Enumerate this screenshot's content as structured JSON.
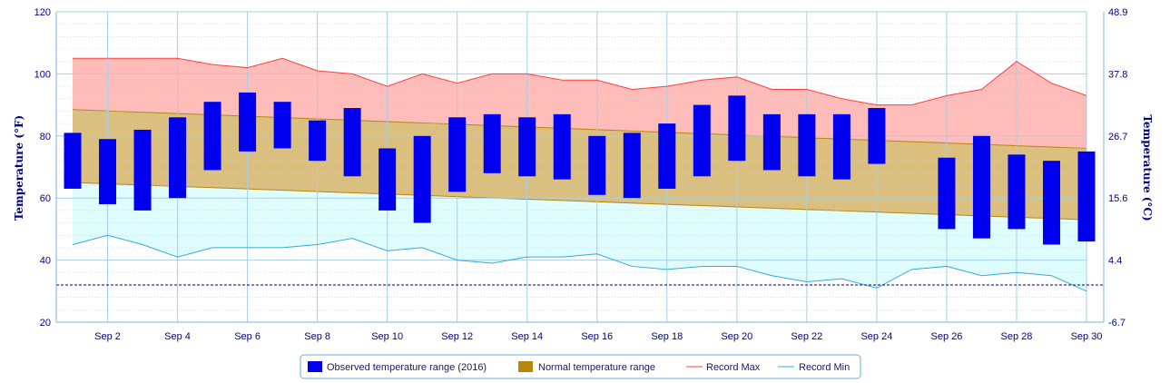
{
  "chart_data": {
    "type": "bar",
    "x_tick_labels": [
      "Sep 2",
      "Sep 4",
      "Sep 6",
      "Sep 8",
      "Sep 10",
      "Sep 12",
      "Sep 14",
      "Sep 16",
      "Sep 18",
      "Sep 20",
      "Sep 22",
      "Sep 24",
      "Sep 26",
      "Sep 28",
      "Sep 30"
    ],
    "days": [
      1,
      2,
      3,
      4,
      5,
      6,
      7,
      8,
      9,
      10,
      11,
      12,
      13,
      14,
      15,
      16,
      17,
      18,
      19,
      20,
      21,
      22,
      23,
      24,
      25,
      26,
      27,
      28,
      29,
      30
    ],
    "ylabel_left": "Temperature (°F)",
    "ylabel_right": "Temperature (°C)",
    "ylim_f": [
      20,
      120
    ],
    "yticks_f": [
      20,
      40,
      60,
      80,
      100,
      120
    ],
    "yticks_c": [
      "-6.7",
      "4.4",
      "15.6",
      "26.7",
      "37.8",
      "48.9"
    ],
    "freezing_line_f": 32,
    "series": [
      {
        "name": "Observed temperature range (2016)",
        "color": "#0000ee",
        "low": [
          63,
          58,
          56,
          60,
          69,
          75,
          76,
          72,
          67,
          56,
          52,
          62,
          68,
          67,
          66,
          61,
          60,
          63,
          67,
          72,
          69,
          67,
          66,
          71,
          null,
          50,
          47,
          50,
          45,
          46
        ],
        "high": [
          81,
          79,
          82,
          86,
          91,
          94,
          91,
          85,
          89,
          76,
          80,
          86,
          87,
          86,
          87,
          80,
          81,
          84,
          90,
          93,
          87,
          87,
          87,
          89,
          null,
          73,
          80,
          74,
          72,
          75
        ]
      },
      {
        "name": "Normal temperature range",
        "color": "#b8860b",
        "low_start": 65,
        "low_end": 53,
        "high_start": 88.5,
        "high_end": 76
      },
      {
        "name": "Record Max",
        "color": "#ff4040",
        "values": [
          105,
          105,
          105,
          105,
          103,
          102,
          105,
          101,
          100,
          96,
          100,
          97,
          100,
          100,
          98,
          98,
          95,
          96,
          98,
          99,
          95,
          95,
          92,
          90,
          90,
          93,
          95,
          104,
          97,
          93
        ]
      },
      {
        "name": "Record Min",
        "color": "#33aadd",
        "values": [
          45,
          48,
          45,
          41,
          44,
          44,
          44,
          45,
          47,
          43,
          44,
          40,
          39,
          41,
          41,
          42,
          38,
          37,
          38,
          38,
          35,
          33,
          34,
          31,
          37,
          38,
          35,
          36,
          35,
          30
        ]
      }
    ],
    "legend": [
      "Observed temperature range (2016)",
      "Normal temperature range",
      "Record Max",
      "Record Min"
    ],
    "legend_position": "bottom-center",
    "grid": true
  }
}
